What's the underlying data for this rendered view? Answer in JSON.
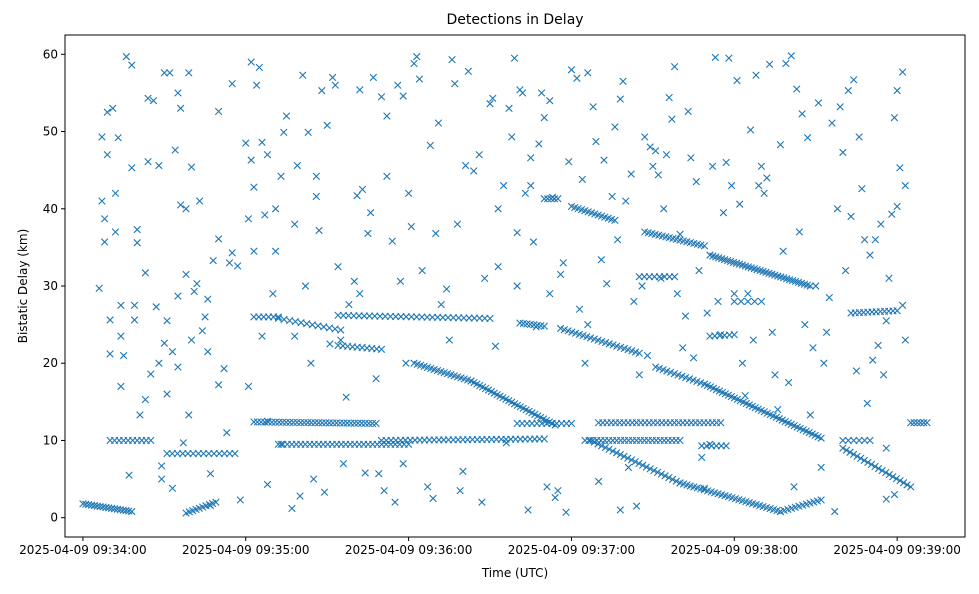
{
  "chart_data": {
    "type": "scatter",
    "title": "Detections in Delay",
    "xlabel": "Time (UTC)",
    "ylabel": "Bistatic Delay (km)",
    "x_units": "seconds after 2025-04-09 09:34:00",
    "xlim": [
      -6.6,
      325
    ],
    "ylim": [
      -2.5,
      62.5
    ],
    "grid": false,
    "marker": "x",
    "color": "#1f77b4",
    "x_ticks": [
      {
        "value": 0,
        "label": "2025-04-09 09:34:00"
      },
      {
        "value": 60,
        "label": "2025-04-09 09:35:00"
      },
      {
        "value": 120,
        "label": "2025-04-09 09:36:00"
      },
      {
        "value": 180,
        "label": "2025-04-09 09:37:00"
      },
      {
        "value": 240,
        "label": "2025-04-09 09:38:00"
      },
      {
        "value": 300,
        "label": "2025-04-09 09:39:00"
      }
    ],
    "y_ticks": [
      {
        "value": 0,
        "label": "0"
      },
      {
        "value": 10,
        "label": "10"
      },
      {
        "value": 20,
        "label": "20"
      },
      {
        "value": 30,
        "label": "30"
      },
      {
        "value": 40,
        "label": "40"
      },
      {
        "value": 50,
        "label": "50"
      },
      {
        "value": 60,
        "label": "60"
      }
    ],
    "tracks": [
      {
        "t0": 0,
        "y0": 1.8,
        "t1": 18,
        "y1": 0.8,
        "n": 18
      },
      {
        "t0": 38,
        "y0": 0.6,
        "t1": 49,
        "y1": 2.0,
        "n": 10
      },
      {
        "t0": 10,
        "y0": 10,
        "t1": 25,
        "y1": 10,
        "n": 10
      },
      {
        "t0": 31,
        "y0": 8.3,
        "t1": 56,
        "y1": 8.3,
        "n": 14
      },
      {
        "t0": 63,
        "y0": 12.4,
        "t1": 108,
        "y1": 12.2,
        "n": 35
      },
      {
        "t0": 72,
        "y0": 9.5,
        "t1": 120,
        "y1": 9.5,
        "n": 30
      },
      {
        "t0": 110,
        "y0": 10,
        "t1": 170,
        "y1": 10.2,
        "n": 35
      },
      {
        "t0": 63,
        "y0": 26,
        "t1": 72,
        "y1": 26,
        "n": 6
      },
      {
        "t0": 72,
        "y0": 25.8,
        "t1": 95,
        "y1": 24.3,
        "n": 12
      },
      {
        "t0": 94,
        "y0": 26.2,
        "t1": 150,
        "y1": 25.8,
        "n": 30
      },
      {
        "t0": 94,
        "y0": 22.3,
        "t1": 110,
        "y1": 21.8,
        "n": 10
      },
      {
        "t0": 122,
        "y0": 20,
        "t1": 143,
        "y1": 17.7,
        "n": 18
      },
      {
        "t0": 143,
        "y0": 17.7,
        "t1": 174,
        "y1": 12,
        "n": 30
      },
      {
        "t0": 160,
        "y0": 12.2,
        "t1": 180,
        "y1": 12.2,
        "n": 12
      },
      {
        "t0": 170,
        "y0": 41.3,
        "t1": 175,
        "y1": 41.3,
        "n": 5
      },
      {
        "t0": 161,
        "y0": 25.2,
        "t1": 170,
        "y1": 24.8,
        "n": 8
      },
      {
        "t0": 176,
        "y0": 24.5,
        "t1": 205,
        "y1": 21.3,
        "n": 22
      },
      {
        "t0": 180,
        "y0": 40.3,
        "t1": 196,
        "y1": 38.5,
        "n": 14
      },
      {
        "t0": 185,
        "y0": 10,
        "t1": 220,
        "y1": 10,
        "n": 25
      },
      {
        "t0": 190,
        "y0": 12.3,
        "t1": 235,
        "y1": 12.3,
        "n": 30
      },
      {
        "t0": 187,
        "y0": 10,
        "t1": 220,
        "y1": 4.5,
        "n": 25
      },
      {
        "t0": 220,
        "y0": 4.5,
        "t1": 257,
        "y1": 0.8,
        "n": 30
      },
      {
        "t0": 257,
        "y0": 0.8,
        "t1": 272,
        "y1": 2.3,
        "n": 12
      },
      {
        "t0": 205,
        "y0": 31.2,
        "t1": 218,
        "y1": 31.2,
        "n": 8
      },
      {
        "t0": 207,
        "y0": 37,
        "t1": 229,
        "y1": 35.2,
        "n": 18
      },
      {
        "t0": 211,
        "y0": 19.5,
        "t1": 229,
        "y1": 17.3,
        "n": 14
      },
      {
        "t0": 229,
        "y0": 17.3,
        "t1": 272,
        "y1": 10.3,
        "n": 40
      },
      {
        "t0": 231,
        "y0": 34,
        "t1": 268,
        "y1": 30,
        "n": 35
      },
      {
        "t0": 231,
        "y0": 23.5,
        "t1": 240,
        "y1": 23.7,
        "n": 6
      },
      {
        "t0": 228,
        "y0": 9.3,
        "t1": 237,
        "y1": 9.3,
        "n": 6
      },
      {
        "t0": 240,
        "y0": 28,
        "t1": 250,
        "y1": 28,
        "n": 5
      },
      {
        "t0": 280,
        "y0": 9,
        "t1": 305,
        "y1": 4,
        "n": 20
      },
      {
        "t0": 283,
        "y0": 26.5,
        "t1": 300,
        "y1": 26.8,
        "n": 12
      },
      {
        "t0": 305,
        "y0": 12.3,
        "t1": 311,
        "y1": 12.3,
        "n": 6
      },
      {
        "t0": 280,
        "y0": 10,
        "t1": 290,
        "y1": 10,
        "n": 6
      }
    ],
    "points": [
      [
        6,
        29.7
      ],
      [
        7,
        41
      ],
      [
        7,
        49.3
      ],
      [
        8,
        38.7
      ],
      [
        8,
        35.7
      ],
      [
        9,
        47
      ],
      [
        9,
        52.5
      ],
      [
        10,
        25.6
      ],
      [
        10,
        21.2
      ],
      [
        11,
        53
      ],
      [
        12,
        37
      ],
      [
        12,
        42
      ],
      [
        13,
        49.2
      ],
      [
        14,
        27.5
      ],
      [
        14,
        23.5
      ],
      [
        14,
        17
      ],
      [
        15,
        21
      ],
      [
        16,
        59.7
      ],
      [
        17,
        5.5
      ],
      [
        18,
        58.6
      ],
      [
        18,
        45.3
      ],
      [
        19,
        27.5
      ],
      [
        19,
        25.6
      ],
      [
        20,
        35.6
      ],
      [
        20,
        37.3
      ],
      [
        21,
        13.3
      ],
      [
        23,
        31.7
      ],
      [
        23,
        15.3
      ],
      [
        24,
        54.3
      ],
      [
        24,
        46.1
      ],
      [
        25,
        18.6
      ],
      [
        26,
        54
      ],
      [
        27,
        27.3
      ],
      [
        28,
        45.6
      ],
      [
        28,
        20
      ],
      [
        29,
        6.7
      ],
      [
        29,
        5
      ],
      [
        30,
        57.6
      ],
      [
        30,
        22.6
      ],
      [
        31,
        25.5
      ],
      [
        31,
        16
      ],
      [
        32,
        57.6
      ],
      [
        33,
        21.5
      ],
      [
        33,
        3.8
      ],
      [
        34,
        47.6
      ],
      [
        35,
        55
      ],
      [
        35,
        28.7
      ],
      [
        35,
        19.5
      ],
      [
        36,
        53
      ],
      [
        36,
        40.5
      ],
      [
        37,
        9.7
      ],
      [
        38,
        31.5
      ],
      [
        38,
        40
      ],
      [
        39,
        57.6
      ],
      [
        39,
        13.3
      ],
      [
        40,
        45.4
      ],
      [
        40,
        23
      ],
      [
        41,
        29.3
      ],
      [
        42,
        30.3
      ],
      [
        43,
        41
      ],
      [
        44,
        24.2
      ],
      [
        45,
        26
      ],
      [
        46,
        28.3
      ],
      [
        46,
        21.5
      ],
      [
        47,
        5.7
      ],
      [
        47,
        1.6
      ],
      [
        48,
        33.3
      ],
      [
        50,
        36.1
      ],
      [
        50,
        17.2
      ],
      [
        50,
        52.6
      ],
      [
        52,
        19.3
      ],
      [
        53,
        11
      ],
      [
        54,
        33
      ],
      [
        55,
        34.3
      ],
      [
        55,
        56.2
      ],
      [
        57,
        32.6
      ],
      [
        58,
        2.3
      ],
      [
        60,
        48.5
      ],
      [
        61,
        17
      ],
      [
        61,
        38.7
      ],
      [
        62,
        46.3
      ],
      [
        62,
        59
      ],
      [
        63,
        42.8
      ],
      [
        63,
        34.5
      ],
      [
        64,
        56
      ],
      [
        65,
        58.3
      ],
      [
        66,
        23.5
      ],
      [
        66,
        48.6
      ],
      [
        67,
        39.2
      ],
      [
        68,
        47
      ],
      [
        68,
        4.3
      ],
      [
        68,
        12.5
      ],
      [
        70,
        29
      ],
      [
        71,
        34.5
      ],
      [
        71,
        40
      ],
      [
        73,
        44.2
      ],
      [
        73,
        9.5
      ],
      [
        74,
        49.9
      ],
      [
        75,
        52
      ],
      [
        77,
        1.2
      ],
      [
        78,
        23.5
      ],
      [
        78,
        38
      ],
      [
        79,
        45.6
      ],
      [
        80,
        2.8
      ],
      [
        81,
        57.3
      ],
      [
        82,
        30
      ],
      [
        83,
        49.9
      ],
      [
        84,
        20
      ],
      [
        85,
        5
      ],
      [
        86,
        44.2
      ],
      [
        86,
        41.6
      ],
      [
        87,
        37.2
      ],
      [
        88,
        55.3
      ],
      [
        89,
        3.3
      ],
      [
        90,
        50.8
      ],
      [
        91,
        22.5
      ],
      [
        92,
        57
      ],
      [
        93,
        56
      ],
      [
        94,
        32.5
      ],
      [
        95,
        23
      ],
      [
        96,
        7
      ],
      [
        97,
        15.6
      ],
      [
        98,
        27.6
      ],
      [
        100,
        30.6
      ],
      [
        101,
        41.7
      ],
      [
        102,
        29
      ],
      [
        102,
        55.4
      ],
      [
        103,
        42.5
      ],
      [
        104,
        5.8
      ],
      [
        105,
        36.8
      ],
      [
        106,
        39.5
      ],
      [
        107,
        57
      ],
      [
        108,
        18
      ],
      [
        109,
        5.7
      ],
      [
        110,
        54.5
      ],
      [
        111,
        3.5
      ],
      [
        112,
        44.2
      ],
      [
        112,
        52
      ],
      [
        114,
        35.8
      ],
      [
        115,
        2
      ],
      [
        116,
        56
      ],
      [
        117,
        30.6
      ],
      [
        118,
        54.6
      ],
      [
        118,
        7
      ],
      [
        119,
        20
      ],
      [
        120,
        42
      ],
      [
        121,
        37.7
      ],
      [
        122,
        58.8
      ],
      [
        123,
        59.7
      ],
      [
        124,
        56.8
      ],
      [
        125,
        32
      ],
      [
        127,
        4
      ],
      [
        128,
        48.2
      ],
      [
        129,
        2.5
      ],
      [
        130,
        36.8
      ],
      [
        131,
        51.1
      ],
      [
        132,
        27.6
      ],
      [
        134,
        29.6
      ],
      [
        135,
        23
      ],
      [
        136,
        59.3
      ],
      [
        137,
        56.2
      ],
      [
        138,
        38
      ],
      [
        139,
        3.5
      ],
      [
        140,
        6
      ],
      [
        141,
        45.6
      ],
      [
        142,
        57.8
      ],
      [
        144,
        44.9
      ],
      [
        146,
        47
      ],
      [
        147,
        2
      ],
      [
        148,
        31
      ],
      [
        150,
        53.6
      ],
      [
        151,
        54.3
      ],
      [
        152,
        22.2
      ],
      [
        153,
        40
      ],
      [
        153,
        32.5
      ],
      [
        155,
        43
      ],
      [
        156,
        9.7
      ],
      [
        157,
        53
      ],
      [
        158,
        49.3
      ],
      [
        159,
        59.5
      ],
      [
        160,
        36.9
      ],
      [
        160,
        30
      ],
      [
        161,
        55.4
      ],
      [
        162,
        55
      ],
      [
        163,
        42
      ],
      [
        164,
        1
      ],
      [
        165,
        46.6
      ],
      [
        165,
        43
      ],
      [
        166,
        35.7
      ],
      [
        167,
        24.7
      ],
      [
        168,
        48.4
      ],
      [
        169,
        55
      ],
      [
        170,
        51.8
      ],
      [
        171,
        4
      ],
      [
        172,
        29
      ],
      [
        172,
        54
      ],
      [
        173,
        41.5
      ],
      [
        174,
        2.6
      ],
      [
        175,
        3.5
      ],
      [
        176,
        31.5
      ],
      [
        177,
        33
      ],
      [
        178,
        0.7
      ],
      [
        179,
        46.1
      ],
      [
        180,
        58
      ],
      [
        182,
        56.9
      ],
      [
        183,
        27
      ],
      [
        184,
        43.8
      ],
      [
        185,
        20
      ],
      [
        186,
        25
      ],
      [
        186,
        57.6
      ],
      [
        188,
        53.2
      ],
      [
        189,
        48.7
      ],
      [
        190,
        4.7
      ],
      [
        191,
        33.4
      ],
      [
        192,
        46.3
      ],
      [
        193,
        30.3
      ],
      [
        195,
        41.6
      ],
      [
        196,
        50.6
      ],
      [
        197,
        36
      ],
      [
        198,
        54.2
      ],
      [
        198,
        1
      ],
      [
        199,
        56.5
      ],
      [
        200,
        41
      ],
      [
        201,
        6.5
      ],
      [
        202,
        44.5
      ],
      [
        203,
        28
      ],
      [
        204,
        1.5
      ],
      [
        205,
        18.5
      ],
      [
        206,
        30
      ],
      [
        207,
        49.3
      ],
      [
        208,
        21
      ],
      [
        209,
        48
      ],
      [
        210,
        45.5
      ],
      [
        211,
        47.5
      ],
      [
        212,
        44.4
      ],
      [
        213,
        31
      ],
      [
        214,
        40
      ],
      [
        215,
        47
      ],
      [
        216,
        54.4
      ],
      [
        217,
        51.6
      ],
      [
        218,
        58.4
      ],
      [
        219,
        29
      ],
      [
        220,
        36.7
      ],
      [
        221,
        22
      ],
      [
        222,
        26.1
      ],
      [
        223,
        52.6
      ],
      [
        224,
        46.6
      ],
      [
        225,
        20.7
      ],
      [
        226,
        43.5
      ],
      [
        227,
        32
      ],
      [
        228,
        7.8
      ],
      [
        229,
        3.8
      ],
      [
        230,
        26.5
      ],
      [
        231,
        9.5
      ],
      [
        232,
        45.5
      ],
      [
        233,
        59.6
      ],
      [
        234,
        28
      ],
      [
        235,
        23.7
      ],
      [
        236,
        39.5
      ],
      [
        237,
        46
      ],
      [
        238,
        59.5
      ],
      [
        239,
        43
      ],
      [
        240,
        29
      ],
      [
        241,
        56.6
      ],
      [
        242,
        40.6
      ],
      [
        243,
        20
      ],
      [
        244,
        15.8
      ],
      [
        245,
        29
      ],
      [
        246,
        50.2
      ],
      [
        247,
        23
      ],
      [
        248,
        57.3
      ],
      [
        249,
        43
      ],
      [
        250,
        45.5
      ],
      [
        251,
        42
      ],
      [
        252,
        44
      ],
      [
        253,
        58.7
      ],
      [
        254,
        24
      ],
      [
        255,
        18.5
      ],
      [
        256,
        14
      ],
      [
        257,
        48.3
      ],
      [
        258,
        34.5
      ],
      [
        259,
        58.8
      ],
      [
        260,
        17.5
      ],
      [
        261,
        59.8
      ],
      [
        262,
        4
      ],
      [
        263,
        55.5
      ],
      [
        264,
        37
      ],
      [
        265,
        52.3
      ],
      [
        266,
        25
      ],
      [
        267,
        49.2
      ],
      [
        268,
        13.3
      ],
      [
        269,
        22
      ],
      [
        270,
        30
      ],
      [
        271,
        53.7
      ],
      [
        272,
        6.5
      ],
      [
        273,
        20
      ],
      [
        274,
        24
      ],
      [
        275,
        28.5
      ],
      [
        276,
        51.1
      ],
      [
        277,
        0.8
      ],
      [
        278,
        40
      ],
      [
        279,
        53.2
      ],
      [
        280,
        47.3
      ],
      [
        281,
        32
      ],
      [
        282,
        55.3
      ],
      [
        283,
        39
      ],
      [
        284,
        56.7
      ],
      [
        285,
        19
      ],
      [
        286,
        49.3
      ],
      [
        287,
        42.6
      ],
      [
        288,
        36
      ],
      [
        289,
        14.8
      ],
      [
        290,
        34
      ],
      [
        291,
        20.4
      ],
      [
        292,
        36
      ],
      [
        293,
        22.3
      ],
      [
        294,
        38
      ],
      [
        295,
        18.5
      ],
      [
        296,
        25.5
      ],
      [
        296,
        9
      ],
      [
        297,
        31
      ],
      [
        298,
        39.3
      ],
      [
        299,
        51.8
      ],
      [
        300,
        40.3
      ],
      [
        300,
        55.3
      ],
      [
        301,
        45.3
      ],
      [
        302,
        57.7
      ],
      [
        303,
        23
      ],
      [
        303,
        43
      ],
      [
        302,
        27.5
      ],
      [
        299,
        3
      ],
      [
        296,
        2.4
      ]
    ]
  }
}
